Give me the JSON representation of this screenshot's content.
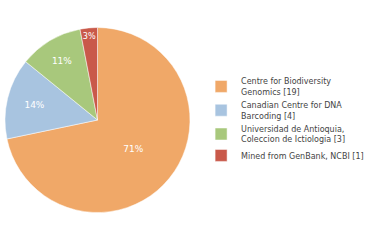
{
  "chart_data": {
    "type": "pie",
    "categories": [
      "Centre for Biodiversity\nGenomics [19]",
      "Canadian Centre for DNA\nBarcoding [4]",
      "Universidad de Antioquia,\nColeccion de Ictiologia [3]",
      "Mined from GenBank, NCBI [1]"
    ],
    "values": [
      71,
      14,
      11,
      3
    ],
    "value_labels": [
      "71%",
      "14%",
      "11%",
      "3%"
    ],
    "colors": [
      "#f0a868",
      "#a8c4e0",
      "#a8c87c",
      "#c9594a"
    ],
    "data_labels": true,
    "legend": "right"
  }
}
